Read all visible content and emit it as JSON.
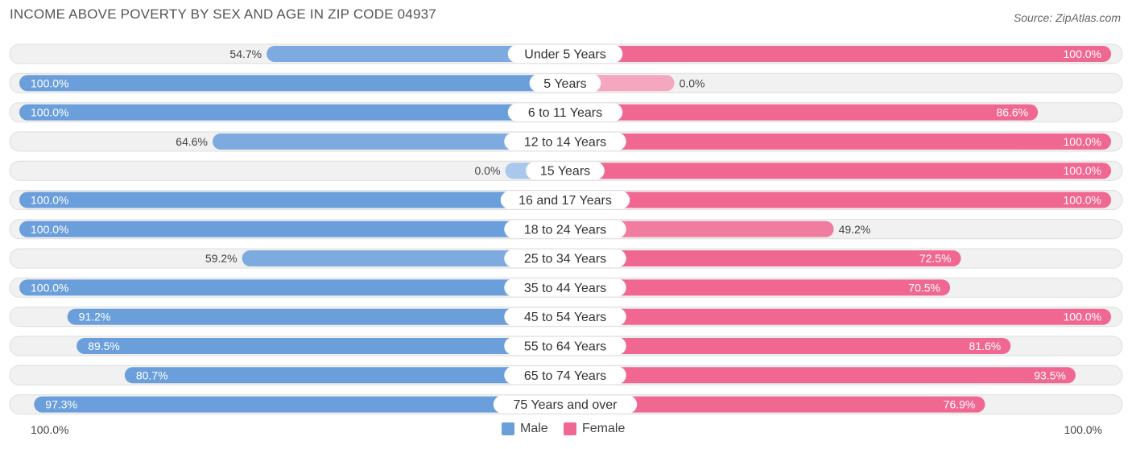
{
  "header": {
    "title": "INCOME ABOVE POVERTY BY SEX AND AGE IN ZIP CODE 04937",
    "source": "Source: ZipAtlas.com"
  },
  "colors": {
    "male": "#6a9fdc",
    "male_light": "#a9c8ec",
    "female": "#f06892",
    "female_light": "#f5a7c0",
    "row_bg": "#f1f1f1",
    "row_border": "#dedede"
  },
  "legend": {
    "male_label": "Male",
    "female_label": "Female",
    "left_axis_label": "100.0%",
    "right_axis_label": "100.0%"
  },
  "chart_data": {
    "type": "bar",
    "orientation": "diverging-horizontal",
    "title": "INCOME ABOVE POVERTY BY SEX AND AGE IN ZIP CODE 04937",
    "categories": [
      "Under 5 Years",
      "5 Years",
      "6 to 11 Years",
      "12 to 14 Years",
      "15 Years",
      "16 and 17 Years",
      "18 to 24 Years",
      "25 to 34 Years",
      "35 to 44 Years",
      "45 to 54 Years",
      "55 to 64 Years",
      "65 to 74 Years",
      "75 Years and over"
    ],
    "series": [
      {
        "name": "Male",
        "values": [
          54.7,
          100.0,
          100.0,
          64.6,
          0.0,
          100.0,
          100.0,
          59.2,
          100.0,
          91.2,
          89.5,
          80.7,
          97.3
        ],
        "labels": [
          "54.7%",
          "100.0%",
          "100.0%",
          "64.6%",
          "0.0%",
          "100.0%",
          "100.0%",
          "59.2%",
          "100.0%",
          "91.2%",
          "89.5%",
          "80.7%",
          "97.3%"
        ]
      },
      {
        "name": "Female",
        "values": [
          100.0,
          0.0,
          86.6,
          100.0,
          100.0,
          100.0,
          49.2,
          72.5,
          70.5,
          100.0,
          81.6,
          93.5,
          76.9
        ],
        "labels": [
          "100.0%",
          "0.0%",
          "86.6%",
          "100.0%",
          "100.0%",
          "100.0%",
          "49.2%",
          "72.5%",
          "70.5%",
          "100.0%",
          "81.6%",
          "93.5%",
          "76.9%"
        ]
      }
    ],
    "xlim": [
      -100,
      100
    ],
    "legend_position": "bottom-center"
  }
}
